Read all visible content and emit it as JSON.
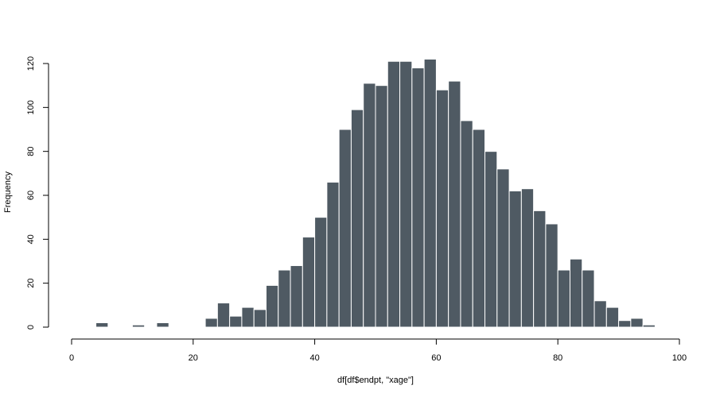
{
  "chart_data": {
    "type": "bar",
    "subtype": "histogram",
    "title": "",
    "xlabel": "df[df$endpt, \"xage\"]",
    "ylabel": "Frequency",
    "bin_width": 2,
    "bin_start": 0,
    "values": [
      0,
      0,
      2,
      0,
      0,
      1,
      0,
      2,
      0,
      0,
      0,
      4,
      11,
      5,
      9,
      8,
      19,
      26,
      28,
      41,
      50,
      66,
      90,
      99,
      111,
      110,
      121,
      121,
      118,
      122,
      108,
      112,
      94,
      90,
      80,
      72,
      62,
      63,
      53,
      47,
      26,
      31,
      26,
      12,
      9,
      3,
      4,
      1,
      0,
      0
    ],
    "xlim": [
      0,
      100
    ],
    "ylim": [
      0,
      120
    ],
    "x_ticks": [
      0,
      20,
      40,
      60,
      80,
      100
    ],
    "y_ticks": [
      0,
      20,
      40,
      60,
      80,
      100,
      120
    ],
    "bar_color": "#4f5a63",
    "bar_border_color": "#ffffff",
    "grid": false,
    "legend": "none"
  }
}
